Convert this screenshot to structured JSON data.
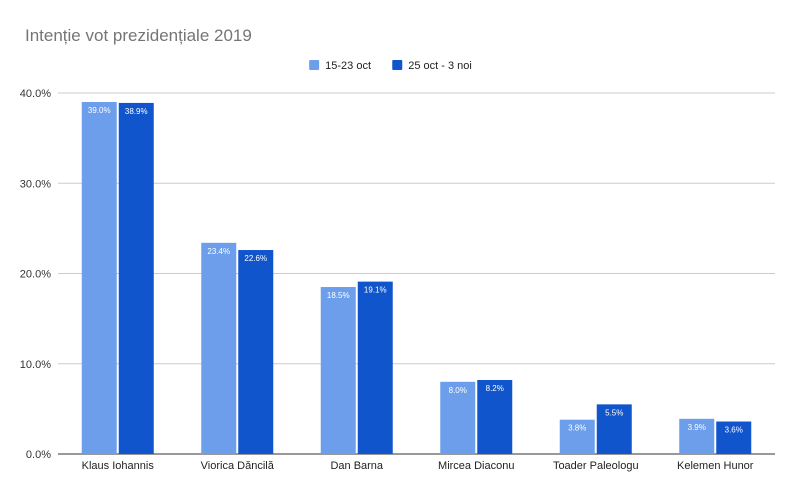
{
  "chart_data": {
    "type": "bar",
    "title": "Intenție vot prezidențiale 2019",
    "xlabel": "",
    "ylabel": "",
    "ylim": [
      0,
      40
    ],
    "yticks": [
      0,
      10,
      20,
      30,
      40
    ],
    "ytick_labels": [
      "0.0%",
      "10.0%",
      "20.0%",
      "30.0%",
      "40.0%"
    ],
    "legend_position": "top-center",
    "grid": true,
    "categories": [
      "Klaus Iohannis",
      "Viorica Dăncilă",
      "Dan Barna",
      "Mircea Diaconu",
      "Toader Paleologu",
      "Kelemen Hunor"
    ],
    "series": [
      {
        "name": "15-23 oct",
        "color": "#6d9eeb",
        "values": [
          39.0,
          23.4,
          18.5,
          8.0,
          3.8,
          3.9
        ],
        "labels": [
          "39.0%",
          "23.4%",
          "18.5%",
          "8.0%",
          "3.8%",
          "3.9%"
        ]
      },
      {
        "name": "25 oct - 3 noi",
        "color": "#1155cc",
        "values": [
          38.9,
          22.6,
          19.1,
          8.2,
          5.5,
          3.6
        ],
        "labels": [
          "38.9%",
          "22.6%",
          "19.1%",
          "8.2%",
          "5.5%",
          "3.6%"
        ]
      }
    ]
  }
}
